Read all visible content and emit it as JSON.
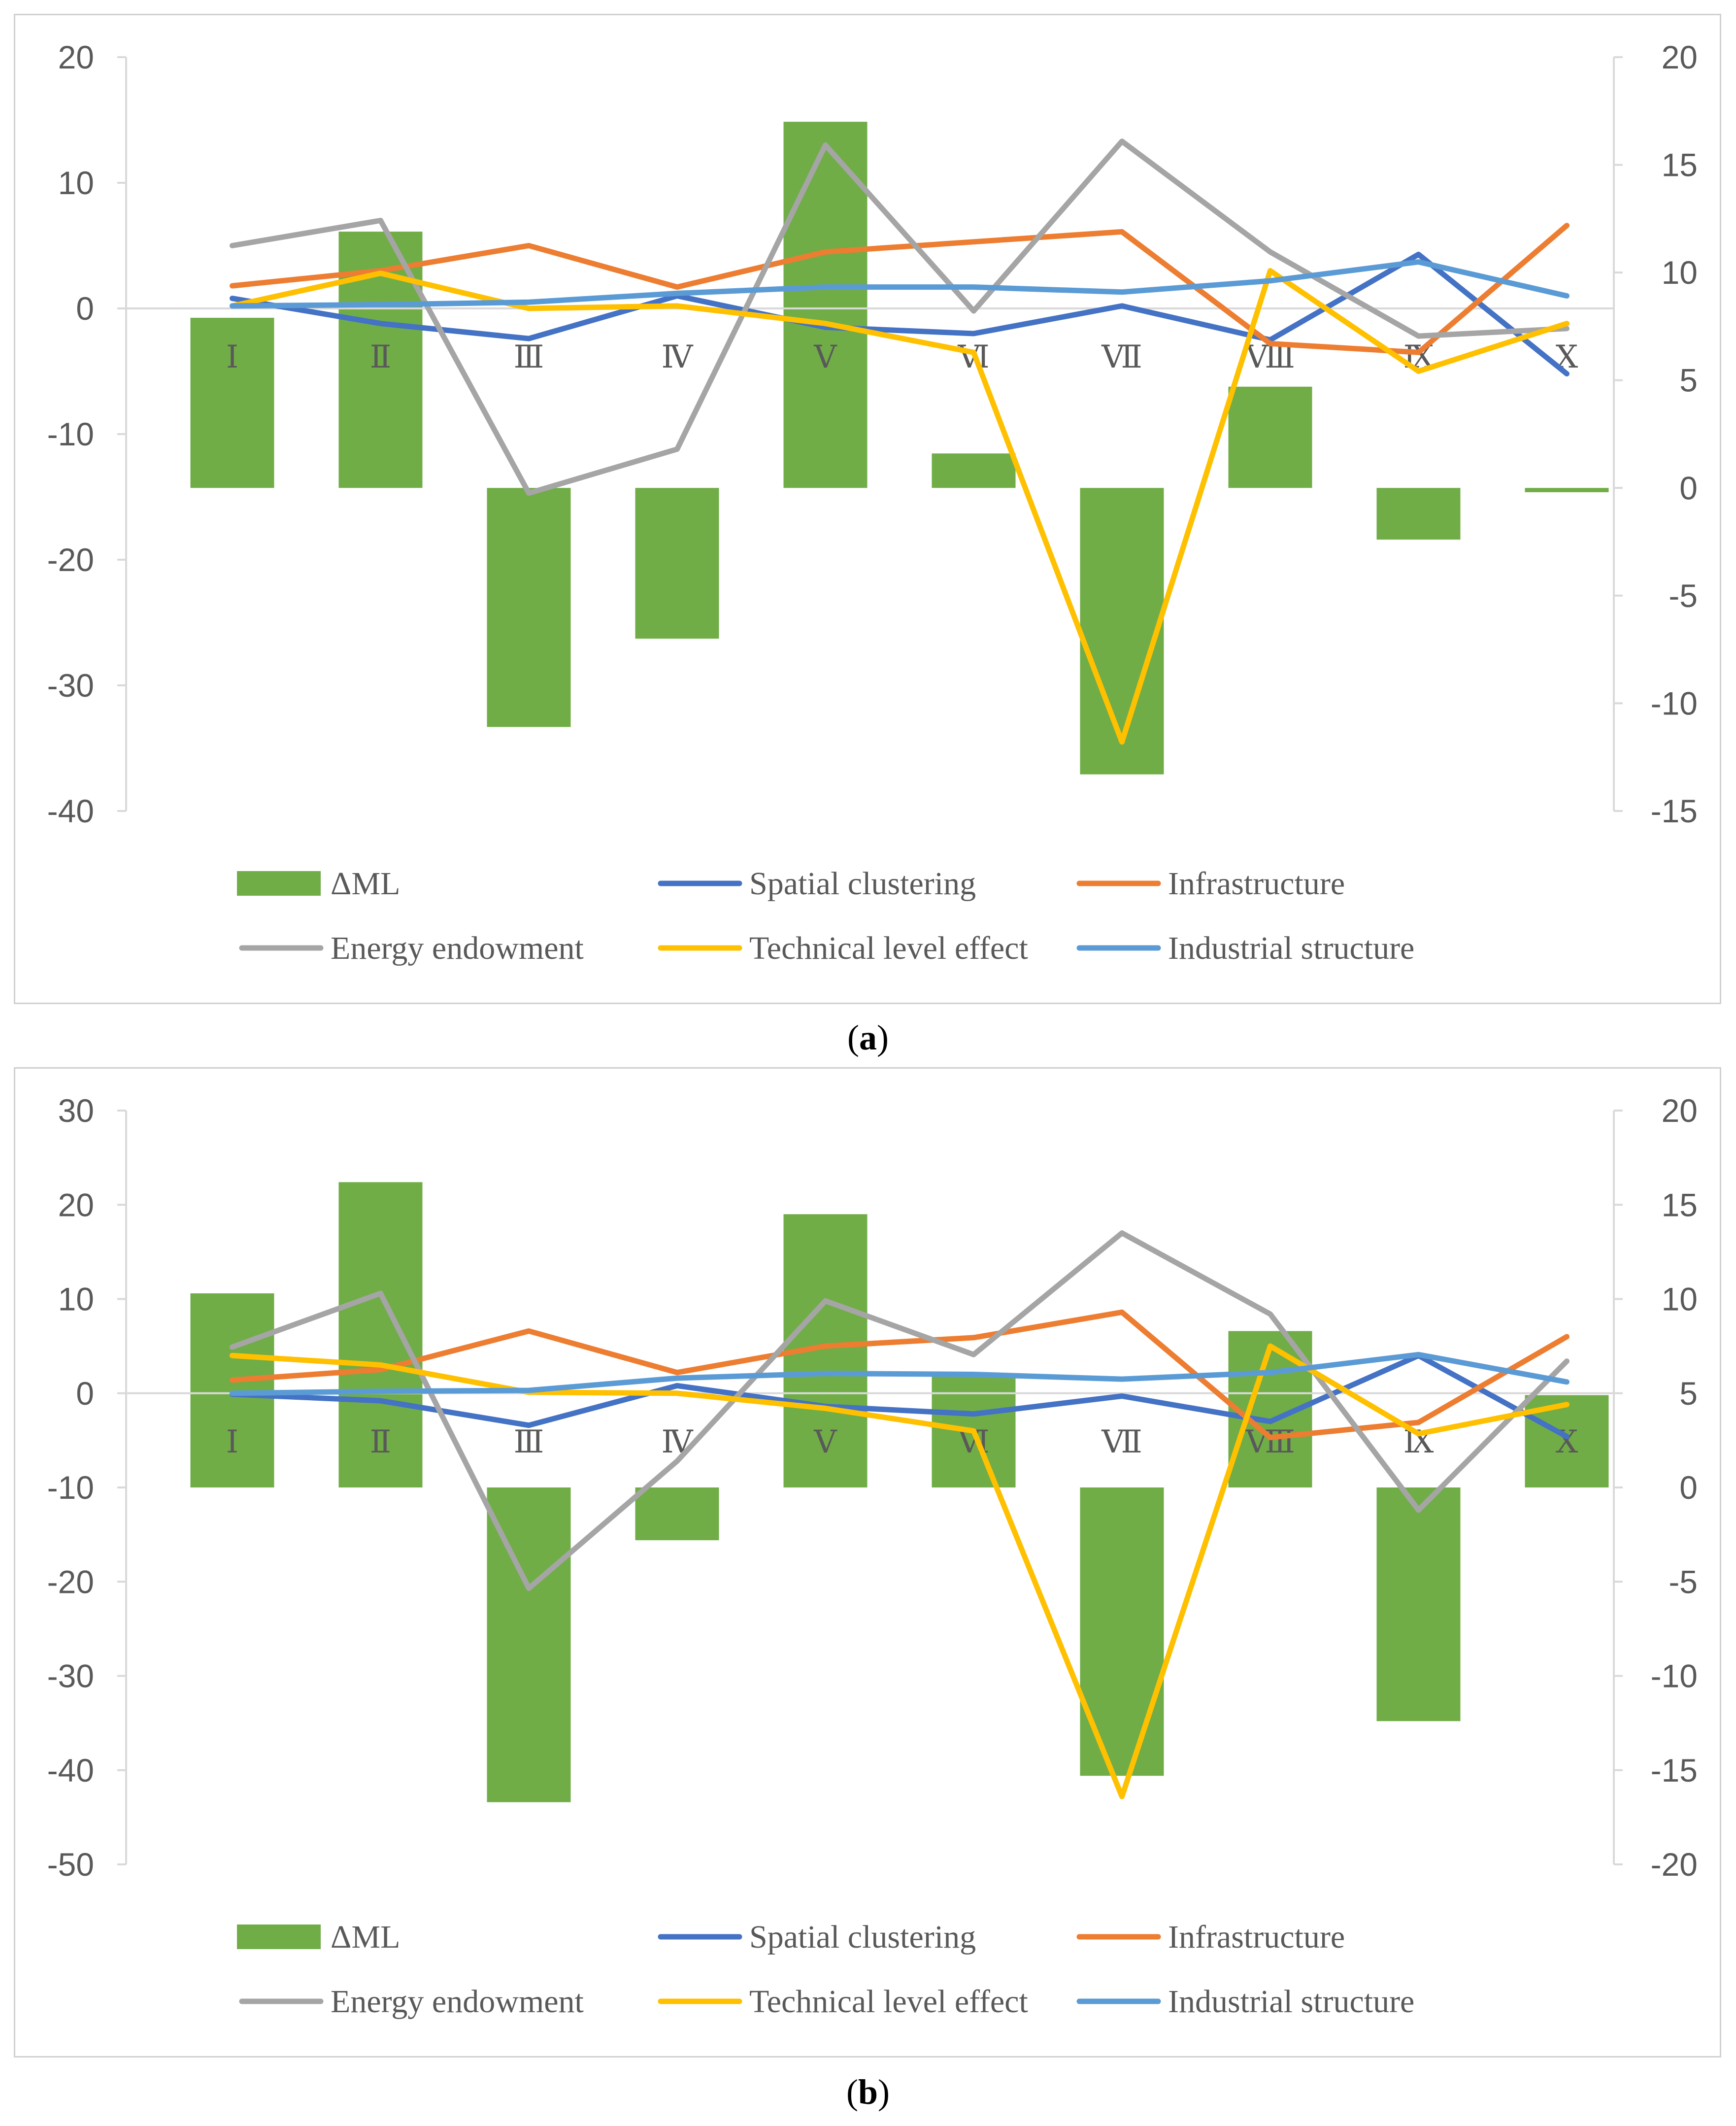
{
  "chart_data": [
    {
      "panel": "a",
      "type": "bar+line",
      "caption_letter": "a",
      "categories": [
        "Ⅰ",
        "Ⅱ",
        "Ⅲ",
        "Ⅳ",
        "Ⅴ",
        "Ⅵ",
        "Ⅶ",
        "Ⅷ",
        "Ⅸ",
        "Ⅹ"
      ],
      "left_axis": {
        "min": -40,
        "max": 20,
        "ticks": [
          20,
          10,
          0,
          -10,
          -20,
          -30,
          -40
        ]
      },
      "right_axis": {
        "min": -15,
        "max": 20,
        "ticks": [
          20,
          15,
          10,
          5,
          0,
          -5,
          -10,
          -15
        ]
      },
      "bar_series": {
        "name": "ΔML",
        "axis": "right",
        "color": "#70ad47",
        "values": [
          7.9,
          11.9,
          -11.1,
          -7.0,
          17.0,
          1.6,
          -13.3,
          4.7,
          -2.4,
          -0.2
        ]
      },
      "line_series": [
        {
          "name": "Spatial clustering",
          "axis": "left",
          "color": "#4472c4",
          "values": [
            0.8,
            -1.2,
            -2.4,
            1.0,
            -1.5,
            -2.0,
            0.2,
            -2.5,
            4.3,
            -5.2
          ]
        },
        {
          "name": "Infrastructure",
          "axis": "left",
          "color": "#ed7d31",
          "values": [
            1.8,
            3.0,
            5.0,
            1.7,
            4.5,
            5.3,
            6.1,
            -2.8,
            -3.5,
            6.6
          ]
        },
        {
          "name": "Energy endowment",
          "axis": "left",
          "color": "#a5a5a5",
          "values": [
            5.0,
            7.0,
            -14.7,
            -11.2,
            13.0,
            -0.2,
            13.3,
            4.5,
            -2.2,
            -1.6
          ]
        },
        {
          "name": "Technical level effect",
          "axis": "left",
          "color": "#ffc000",
          "values": [
            0.2,
            2.8,
            0.0,
            0.2,
            -1.2,
            -3.5,
            -34.5,
            3.0,
            -5.0,
            -1.2
          ]
        },
        {
          "name": "Industrial structure",
          "axis": "left",
          "color": "#5b9bd5",
          "values": [
            0.2,
            0.3,
            0.5,
            1.2,
            1.7,
            1.7,
            1.3,
            2.2,
            3.7,
            1.0
          ]
        }
      ],
      "legend": [
        "ΔML",
        "Spatial clustering",
        "Infrastructure",
        "Energy endowment",
        "Technical level effect",
        "Industrial structure"
      ]
    },
    {
      "panel": "b",
      "type": "bar+line",
      "caption_letter": "b",
      "categories": [
        "Ⅰ",
        "Ⅱ",
        "Ⅲ",
        "Ⅳ",
        "Ⅴ",
        "Ⅵ",
        "Ⅶ",
        "Ⅷ",
        "Ⅸ",
        "Ⅹ"
      ],
      "left_axis": {
        "min": -50,
        "max": 30,
        "ticks": [
          30,
          20,
          10,
          0,
          -10,
          -20,
          -30,
          -40,
          -50
        ]
      },
      "right_axis": {
        "min": -20,
        "max": 20,
        "ticks": [
          20,
          15,
          10,
          5,
          0,
          -5,
          -10,
          -15,
          -20
        ]
      },
      "bar_series": {
        "name": "ΔML",
        "axis": "right",
        "color": "#70ad47",
        "values": [
          10.3,
          16.2,
          -16.7,
          -2.8,
          14.5,
          5.9,
          -15.3,
          8.3,
          -12.4,
          4.9
        ]
      },
      "line_series": [
        {
          "name": "Spatial clustering",
          "axis": "left",
          "color": "#4472c4",
          "values": [
            -0.1,
            -0.8,
            -3.4,
            0.8,
            -1.4,
            -2.2,
            -0.3,
            -3.0,
            4.0,
            -4.6
          ]
        },
        {
          "name": "Infrastructure",
          "axis": "left",
          "color": "#ed7d31",
          "values": [
            1.4,
            2.5,
            6.6,
            2.2,
            5.0,
            5.9,
            8.6,
            -4.7,
            -3.1,
            6.0
          ]
        },
        {
          "name": "Energy endowment",
          "axis": "left",
          "color": "#a5a5a5",
          "values": [
            4.9,
            10.6,
            -20.7,
            -7.2,
            9.8,
            4.1,
            17.0,
            8.4,
            -12.4,
            3.4
          ]
        },
        {
          "name": "Technical level effect",
          "axis": "left",
          "color": "#ffc000",
          "values": [
            4.0,
            3.0,
            0.1,
            0.0,
            -1.6,
            -4.0,
            -42.8,
            5.0,
            -4.3,
            -1.2
          ]
        },
        {
          "name": "Industrial structure",
          "axis": "left",
          "color": "#5b9bd5",
          "values": [
            0.0,
            0.2,
            0.3,
            1.6,
            2.1,
            2.0,
            1.5,
            2.2,
            4.1,
            1.2
          ]
        }
      ],
      "legend": [
        "ΔML",
        "Spatial clustering",
        "Infrastructure",
        "Energy endowment",
        "Technical level effect",
        "Industrial structure"
      ]
    }
  ]
}
